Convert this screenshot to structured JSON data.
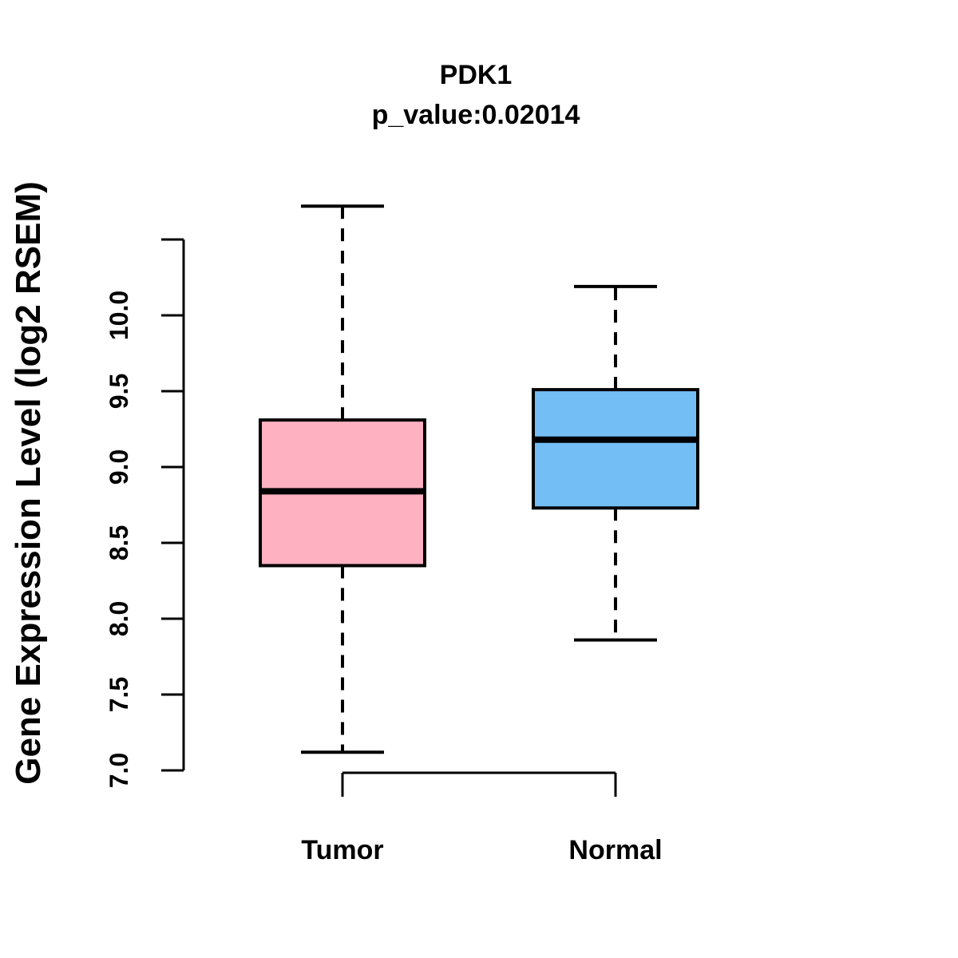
{
  "chart_data": {
    "type": "boxplot",
    "title": "PDK1",
    "subtitle": "p_value:0.02014",
    "ylabel": "Gene Expression Level (log2 RSEM)",
    "xlabel": "",
    "ylim": [
      7.0,
      10.5
    ],
    "yticks": [
      "7.0",
      "7.5",
      "8.0",
      "8.5",
      "9.0",
      "9.5",
      "10.0"
    ],
    "grid": false,
    "legend": "none",
    "line_color": "#000000",
    "groups": [
      {
        "label": "Tumor",
        "fill_color": "#FDB1C1",
        "lower_whisker": 7.12,
        "q1": 8.35,
        "median": 8.84,
        "q3": 9.31,
        "upper_whisker": 10.72
      },
      {
        "label": "Normal",
        "fill_color": "#73BEF5",
        "lower_whisker": 7.86,
        "q1": 8.73,
        "median": 9.18,
        "q3": 9.51,
        "upper_whisker": 10.19
      }
    ]
  }
}
